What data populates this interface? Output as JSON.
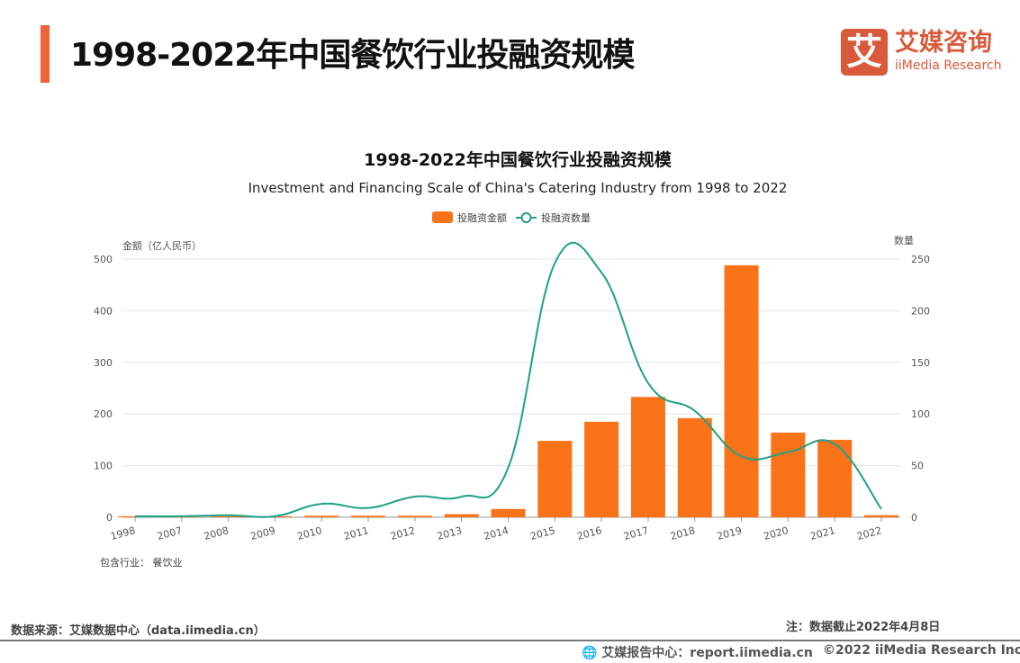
{
  "header": {
    "title": "1998-2022年中国餐饮行业投融资规模"
  },
  "logo": {
    "mark": "艾",
    "cn": "艾媒咨询",
    "en": "iiMedia Research"
  },
  "colors": {
    "accent": "#f0643c",
    "bar": "#fa7319",
    "line": "#1fa186",
    "brand": "#d95a3a"
  },
  "chart_data": {
    "type": "bar+line",
    "title": "1998-2022年中国餐饮行业投融资规模",
    "subtitle": "Investment and Financing Scale of China's Catering Industry from 1998 to 2022",
    "categories": [
      "1998",
      "2007",
      "2008",
      "2009",
      "2010",
      "2011",
      "2012",
      "2013",
      "2014",
      "2015",
      "2016",
      "2017",
      "2018",
      "2019",
      "2020",
      "2021",
      "2022"
    ],
    "series": [
      {
        "name": "投融资金额",
        "type": "bar",
        "axis": "left",
        "values": [
          2,
          0.5,
          2,
          2,
          3,
          3,
          3,
          6,
          16,
          148,
          185,
          233,
          192,
          488,
          164,
          150,
          4
        ]
      },
      {
        "name": "投融资数量",
        "type": "line",
        "axis": "right",
        "smooth": true,
        "values": [
          1,
          1,
          2,
          1,
          13,
          9,
          20,
          20,
          48,
          246,
          237,
          130,
          103,
          59,
          63,
          71,
          8
        ]
      }
    ],
    "ylabel_left": "金额（亿人民币）",
    "ylabel_right": "数量",
    "ylim_left": [
      0,
      500
    ],
    "ylim_right": [
      0,
      250
    ],
    "yticks_left": [
      "0",
      "100",
      "200",
      "300",
      "400",
      "500"
    ],
    "yticks_right": [
      "0",
      "50",
      "100",
      "150",
      "200",
      "250"
    ],
    "grid": true,
    "legend": "top-center",
    "note": "包含行业： 餐饮业"
  },
  "footer": {
    "source": "数据来源：艾媒数据中心（data.iimedia.cn）",
    "note": "注：数据截止2022年4月8日",
    "report": "艾媒报告中心：report.iimedia.cn",
    "copyright": "©2022  iiMedia Research  Inc"
  }
}
